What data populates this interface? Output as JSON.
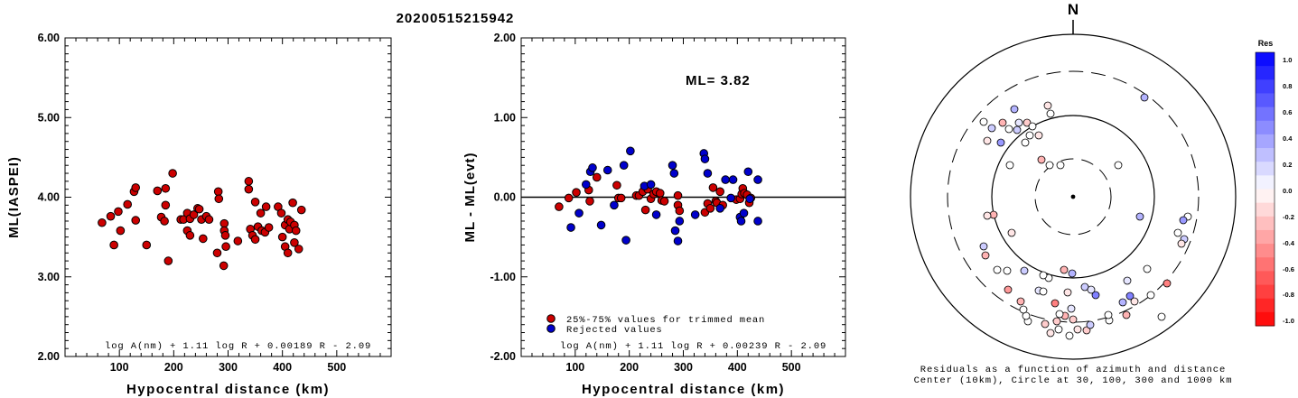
{
  "figure_title": "20200515215942",
  "chart_data": [
    {
      "type": "scatter",
      "xlabel": "Hypocentral distance (km)",
      "ylabel": "ML(IASPEI)",
      "xlim": [
        0,
        600
      ],
      "ylim": [
        2.0,
        6.0
      ],
      "xticks": [
        "100",
        "200",
        "300",
        "400",
        "500"
      ],
      "yticks": [
        "2.00",
        "3.00",
        "4.00",
        "5.00",
        "6.00"
      ],
      "formula": "log A(nm) + 1.11 log R + 0.00189 R - 2.09",
      "series": [
        {
          "color": "#cc0000",
          "points": [
            [
              68,
              3.68
            ],
            [
              84,
              3.76
            ],
            [
              90,
              3.4
            ],
            [
              98,
              3.82
            ],
            [
              102,
              3.58
            ],
            [
              115,
              3.91
            ],
            [
              127,
              4.07
            ],
            [
              130,
              4.12
            ],
            [
              130,
              3.71
            ],
            [
              150,
              3.4
            ],
            [
              170,
              4.08
            ],
            [
              177,
              3.75
            ],
            [
              183,
              3.7
            ],
            [
              185,
              3.9
            ],
            [
              185,
              4.11
            ],
            [
              190,
              3.2
            ],
            [
              198,
              4.3
            ],
            [
              213,
              3.72
            ],
            [
              218,
              3.72
            ],
            [
              225,
              3.8
            ],
            [
              225,
              3.58
            ],
            [
              230,
              3.73
            ],
            [
              230,
              3.52
            ],
            [
              237,
              3.78
            ],
            [
              244,
              3.86
            ],
            [
              247,
              3.85
            ],
            [
              251,
              3.72
            ],
            [
              254,
              3.48
            ],
            [
              260,
              3.76
            ],
            [
              265,
              3.72
            ],
            [
              280,
              3.3
            ],
            [
              282,
              4.07
            ],
            [
              283,
              3.98
            ],
            [
              292,
              3.14
            ],
            [
              293,
              3.67
            ],
            [
              293,
              3.58
            ],
            [
              295,
              3.52
            ],
            [
              296,
              3.38
            ],
            [
              318,
              3.45
            ],
            [
              338,
              4.1
            ],
            [
              338,
              4.2
            ],
            [
              341,
              3.6
            ],
            [
              345,
              3.52
            ],
            [
              350,
              3.94
            ],
            [
              350,
              3.47
            ],
            [
              355,
              3.63
            ],
            [
              360,
              3.8
            ],
            [
              362,
              3.58
            ],
            [
              368,
              3.56
            ],
            [
              370,
              3.88
            ],
            [
              375,
              3.62
            ],
            [
              392,
              3.88
            ],
            [
              398,
              3.8
            ],
            [
              400,
              3.5
            ],
            [
              405,
              3.65
            ],
            [
              405,
              3.38
            ],
            [
              410,
              3.72
            ],
            [
              410,
              3.3
            ],
            [
              413,
              3.6
            ],
            [
              415,
              3.69
            ],
            [
              419,
              3.93
            ],
            [
              422,
              3.43
            ],
            [
              422,
              3.65
            ],
            [
              425,
              3.58
            ],
            [
              430,
              3.35
            ],
            [
              435,
              3.84
            ]
          ]
        }
      ]
    },
    {
      "type": "scatter",
      "xlabel": "Hypocentral distance (km)",
      "ylabel": "ML - ML(evt)",
      "xlim": [
        0,
        600
      ],
      "ylim": [
        -2.0,
        2.0
      ],
      "xticks": [
        "100",
        "200",
        "300",
        "400",
        "500"
      ],
      "yticks": [
        "-2.00",
        "-1.00",
        "0.00",
        "1.00",
        "2.00"
      ],
      "annotation": "ML= 3.82",
      "formula": "log A(nm) + 1.11 log R + 0.00239 R - 2.09",
      "legend": [
        {
          "label": "25%-75% values for trimmed mean",
          "color": "#cc0000"
        },
        {
          "label": "Rejected values",
          "color": "#0000cc"
        }
      ],
      "series": [
        {
          "name": "25%-75% values for trimmed mean",
          "color": "#cc0000",
          "points": [
            [
              70,
              -0.12
            ],
            [
              88,
              -0.01
            ],
            [
              102,
              0.06
            ],
            [
              125,
              0.09
            ],
            [
              127,
              -0.05
            ],
            [
              140,
              0.25
            ],
            [
              177,
              0.15
            ],
            [
              180,
              -0.01
            ],
            [
              185,
              -0.01
            ],
            [
              213,
              0.02
            ],
            [
              218,
              0.02
            ],
            [
              225,
              0.07
            ],
            [
              230,
              -0.16
            ],
            [
              234,
              0.1
            ],
            [
              240,
              -0.02
            ],
            [
              245,
              0.04
            ],
            [
              250,
              0.07
            ],
            [
              257,
              0.05
            ],
            [
              260,
              -0.04
            ],
            [
              265,
              -0.05
            ],
            [
              290,
              0.02
            ],
            [
              290,
              -0.1
            ],
            [
              293,
              -0.17
            ],
            [
              340,
              -0.19
            ],
            [
              345,
              -0.08
            ],
            [
              350,
              -0.14
            ],
            [
              355,
              0.12
            ],
            [
              360,
              -0.05
            ],
            [
              362,
              -0.07
            ],
            [
              368,
              0.07
            ],
            [
              373,
              -0.1
            ],
            [
              398,
              -0.03
            ],
            [
              405,
              -0.02
            ],
            [
              408,
              0.04
            ],
            [
              410,
              0.11
            ],
            [
              413,
              0.05
            ],
            [
              418,
              0.03
            ],
            [
              422,
              -0.07
            ],
            [
              425,
              -0.01
            ]
          ]
        },
        {
          "name": "Rejected values",
          "color": "#0000cc",
          "points": [
            [
              92,
              -0.38
            ],
            [
              107,
              -0.2
            ],
            [
              120,
              0.16
            ],
            [
              128,
              0.32
            ],
            [
              132,
              0.37
            ],
            [
              148,
              -0.35
            ],
            [
              160,
              0.34
            ],
            [
              172,
              -0.1
            ],
            [
              190,
              0.4
            ],
            [
              194,
              -0.54
            ],
            [
              202,
              0.58
            ],
            [
              228,
              0.14
            ],
            [
              240,
              0.16
            ],
            [
              250,
              -0.22
            ],
            [
              280,
              0.4
            ],
            [
              283,
              0.3
            ],
            [
              285,
              -0.42
            ],
            [
              290,
              -0.55
            ],
            [
              293,
              -0.3
            ],
            [
              322,
              -0.22
            ],
            [
              338,
              0.55
            ],
            [
              340,
              0.48
            ],
            [
              345,
              0.3
            ],
            [
              368,
              -0.14
            ],
            [
              378,
              0.22
            ],
            [
              388,
              -0.01
            ],
            [
              392,
              0.22
            ],
            [
              405,
              -0.25
            ],
            [
              407,
              -0.3
            ],
            [
              412,
              -0.2
            ],
            [
              420,
              0.32
            ],
            [
              423,
              -0.02
            ],
            [
              438,
              0.22
            ],
            [
              438,
              -0.3
            ]
          ]
        }
      ]
    },
    {
      "type": "polar-scatter",
      "north_label": "N",
      "caption_line1": "Residuals as a function of azimuth and distance",
      "caption_line2": "Center (10km), Circle at 30, 100, 300 and 1000 km",
      "colorbar_title": "Res",
      "colorbar_ticks": [
        "1.0",
        "0.8",
        "0.6",
        "0.4",
        "0.2",
        "0.0",
        "-0.2",
        "-0.4",
        "-0.6",
        "-0.8",
        "-1.0"
      ],
      "points": [
        [
          -65,
          97,
          0.3
        ],
        [
          -28,
          101,
          -0.1
        ],
        [
          -78,
          82,
          -0.3
        ],
        [
          -60,
          82,
          0.1
        ],
        [
          -51,
          82,
          -0.2
        ],
        [
          -45,
          78,
          0.0
        ],
        [
          -38,
          68,
          -0.1
        ],
        [
          -48,
          68,
          0.0
        ],
        [
          -53,
          60,
          0.0
        ],
        [
          -25,
          92,
          0.0
        ],
        [
          -99,
          83,
          0.0
        ],
        [
          -90,
          76,
          0.2
        ],
        [
          -71,
          75,
          0.0
        ],
        [
          -62,
          74,
          0.2
        ],
        [
          -95,
          62,
          -0.1
        ],
        [
          -80,
          60,
          0.4
        ],
        [
          -35,
          41,
          -0.3
        ],
        [
          -70,
          35,
          0.0
        ],
        [
          -26,
          35,
          0.0
        ],
        [
          -14,
          35,
          0.0
        ],
        [
          50,
          35,
          0.0
        ],
        [
          79,
          110,
          0.3
        ],
        [
          74,
          -22,
          0.3
        ],
        [
          127,
          -22,
          0.0
        ],
        [
          122,
          -26,
          0.4
        ],
        [
          116,
          -40,
          0.0
        ],
        [
          123,
          -47,
          0.2
        ],
        [
          120,
          -52,
          -0.1
        ],
        [
          -27,
          -90,
          0.0
        ],
        [
          -97,
          -65,
          -0.3
        ],
        [
          -88,
          -20,
          -0.3
        ],
        [
          -68,
          -40,
          -0.1
        ],
        [
          -95,
          -21,
          -0.1
        ],
        [
          -99,
          -55,
          0.2
        ],
        [
          -84,
          -81,
          0.0
        ],
        [
          -73,
          -82,
          0.0
        ],
        [
          -54,
          -82,
          0.2
        ],
        [
          -10,
          -81,
          -0.3
        ],
        [
          -1,
          -85,
          0.3
        ],
        [
          -72,
          -103,
          -0.4
        ],
        [
          -38,
          -104,
          0.1
        ],
        [
          -58,
          -116,
          -0.3
        ],
        [
          -20,
          -118,
          -0.5
        ],
        [
          -6,
          -106,
          -0.1
        ],
        [
          13,
          -100,
          0.2
        ],
        [
          -50,
          -138,
          0.0
        ],
        [
          -52,
          -132,
          0.0
        ],
        [
          -4,
          -154,
          0.0
        ],
        [
          -31,
          -141,
          -0.2
        ],
        [
          -25,
          -151,
          -0.1
        ],
        [
          5,
          -147,
          -0.1
        ],
        [
          15,
          -148,
          -0.2
        ],
        [
          40,
          -137,
          0.0
        ],
        [
          39,
          -131,
          0.0
        ],
        [
          60,
          -93,
          0.1
        ],
        [
          59,
          -131,
          -0.3
        ],
        [
          98,
          -133,
          0.0
        ],
        [
          86,
          -109,
          0.0
        ],
        [
          104,
          -96,
          -0.5
        ],
        [
          63,
          -110,
          0.5
        ],
        [
          68,
          -116,
          -0.1
        ],
        [
          55,
          -117,
          0.3
        ],
        [
          25,
          -109,
          0.5
        ],
        [
          82,
          -80,
          0.0
        ],
        [
          20,
          -103,
          0.1
        ],
        [
          0,
          -136,
          -0.2
        ],
        [
          -33,
          -105,
          0.0
        ],
        [
          -33,
          -87,
          0.0
        ],
        [
          19,
          -142,
          0.2
        ],
        [
          -18,
          -138,
          -0.2
        ],
        [
          -16,
          -147,
          0.0
        ],
        [
          -9,
          -132,
          -0.3
        ],
        [
          -15,
          -130,
          0.0
        ],
        [
          -2,
          -124,
          0.1
        ],
        [
          -55,
          -125,
          0.0
        ]
      ]
    }
  ]
}
